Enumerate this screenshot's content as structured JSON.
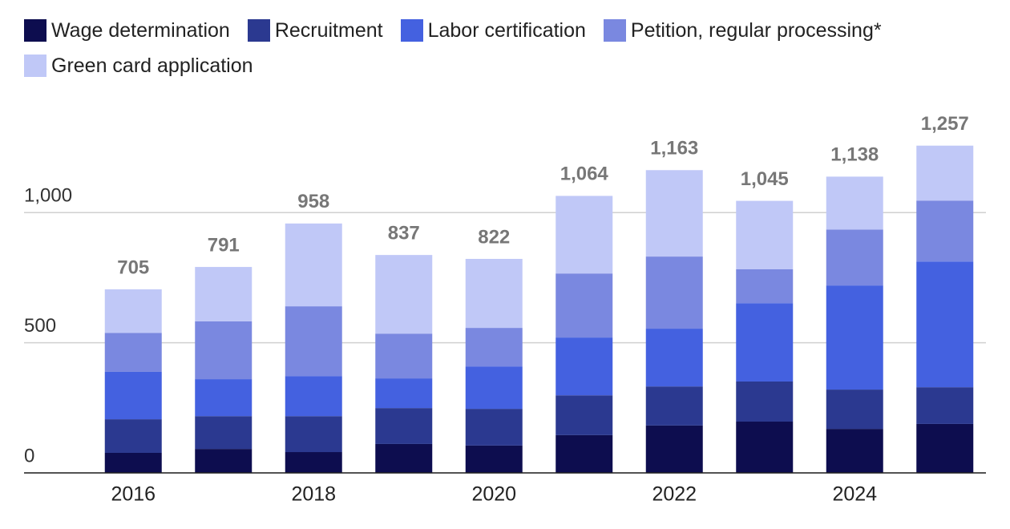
{
  "chart_data": {
    "type": "stacked-bar",
    "categories": [
      "2016",
      null,
      "2018",
      null,
      "2020",
      null,
      "2022",
      null,
      "2024",
      null
    ],
    "series": [
      {
        "name": "Wage determination",
        "color": "#0d0d4f",
        "values": [
          77,
          92,
          80,
          111,
          105,
          145,
          182,
          197,
          169,
          188
        ]
      },
      {
        "name": "Recruitment",
        "color": "#2b3990",
        "values": [
          129,
          126,
          138,
          138,
          141,
          153,
          150,
          154,
          151,
          141
        ]
      },
      {
        "name": "Labor certification",
        "color": "#4461e0",
        "values": [
          182,
          142,
          154,
          114,
          163,
          222,
          222,
          301,
          400,
          483
        ]
      },
      {
        "name": "Petition, regular processing*",
        "color": "#7a88e0",
        "values": [
          150,
          222,
          268,
          172,
          148,
          246,
          277,
          130,
          215,
          234
        ]
      },
      {
        "name": "Green card application",
        "color": "#c0c8f7",
        "values": [
          167,
          209,
          318,
          302,
          265,
          298,
          332,
          263,
          203,
          211
        ]
      }
    ],
    "totals": {
      "values": [
        705,
        791,
        958,
        837,
        822,
        1064,
        1163,
        1045,
        1138,
        1257
      ],
      "value_labels": [
        "705",
        "791",
        "958",
        "837",
        "822",
        "1,064",
        "1,163",
        "1,045",
        "1,138",
        "1,257"
      ]
    },
    "ylim": [
      0,
      1330
    ],
    "yticks": [
      0,
      500,
      {
        "value": 1000,
        "label": "1,000"
      }
    ],
    "grid": true
  }
}
